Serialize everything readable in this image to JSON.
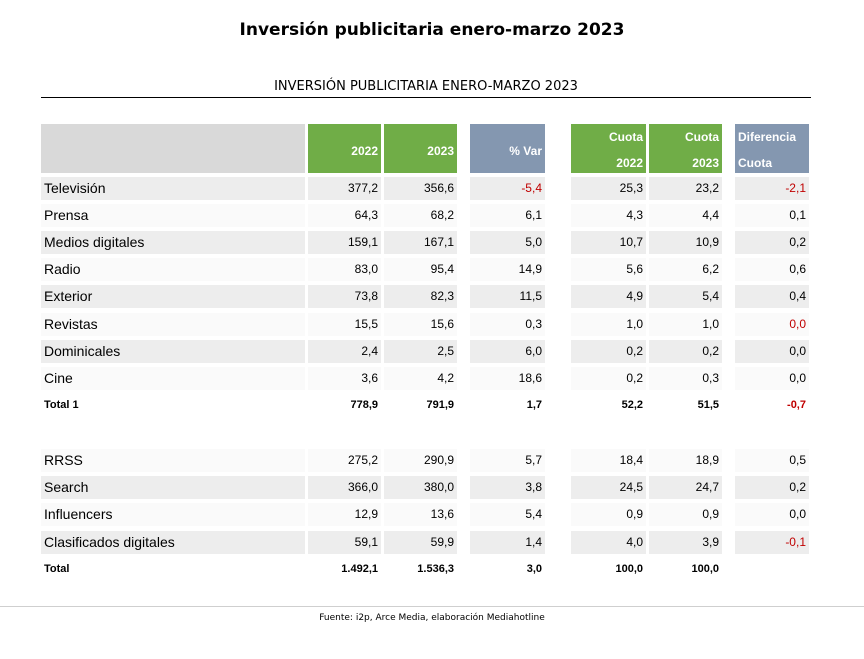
{
  "title": "Inversión publicitaria enero-marzo 2023",
  "subtitle": "INVERSIÓN PUBLICITARIA ENERO-MARZO 2023",
  "source": "Fuente: i2p, Arce Media, elaboración Mediahotline",
  "colors": {
    "header_green": "#70ad47",
    "header_blue": "#8497b0",
    "header_gray": "#d9d9d9",
    "negative": "#c00000"
  },
  "chart_data": {
    "type": "table",
    "title": "INVERSIÓN PUBLICITARIA ENERO-MARZO 2023",
    "headers": {
      "y2022": "2022",
      "y2023": "2023",
      "var": "% Var",
      "cuota2022": [
        "Cuota",
        "2022"
      ],
      "cuota2023": [
        "Cuota",
        "2023"
      ],
      "diff": [
        "Diferencia",
        "Cuota"
      ]
    },
    "rows": [
      {
        "label": "Televisión",
        "y2022": "377,2",
        "y2023": "356,6",
        "var": "-5,4",
        "c2022": "25,3",
        "c2023": "23,2",
        "diff": "-2,1",
        "neg_var": true,
        "neg_diff": true
      },
      {
        "label": "Prensa",
        "y2022": "64,3",
        "y2023": "68,2",
        "var": "6,1",
        "c2022": "4,3",
        "c2023": "4,4",
        "diff": "0,1"
      },
      {
        "label": "Medios digitales",
        "y2022": "159,1",
        "y2023": "167,1",
        "var": "5,0",
        "c2022": "10,7",
        "c2023": "10,9",
        "diff": "0,2"
      },
      {
        "label": "Radio",
        "y2022": "83,0",
        "y2023": "95,4",
        "var": "14,9",
        "c2022": "5,6",
        "c2023": "6,2",
        "diff": "0,6"
      },
      {
        "label": "Exterior",
        "y2022": "73,8",
        "y2023": "82,3",
        "var": "11,5",
        "c2022": "4,9",
        "c2023": "5,4",
        "diff": "0,4"
      },
      {
        "label": "Revistas",
        "y2022": "15,5",
        "y2023": "15,6",
        "var": "0,3",
        "c2022": "1,0",
        "c2023": "1,0",
        "diff": "0,0",
        "neg_diff": true
      },
      {
        "label": "Dominicales",
        "y2022": "2,4",
        "y2023": "2,5",
        "var": "6,0",
        "c2022": "0,2",
        "c2023": "0,2",
        "diff": "0,0"
      },
      {
        "label": "Cine",
        "y2022": "3,6",
        "y2023": "4,2",
        "var": "18,6",
        "c2022": "0,2",
        "c2023": "0,3",
        "diff": "0,0"
      },
      {
        "label": "Total 1",
        "y2022": "778,9",
        "y2023": "791,9",
        "var": "1,7",
        "c2022": "52,2",
        "c2023": "51,5",
        "diff": "-0,7",
        "total": true,
        "neg_diff": true
      },
      {
        "label": "RRSS",
        "y2022": "275,2",
        "y2023": "290,9",
        "var": "5,7",
        "c2022": "18,4",
        "c2023": "18,9",
        "diff": "0,5"
      },
      {
        "label": "Search",
        "y2022": "366,0",
        "y2023": "380,0",
        "var": "3,8",
        "c2022": "24,5",
        "c2023": "24,7",
        "diff": "0,2"
      },
      {
        "label": "Influencers",
        "y2022": "12,9",
        "y2023": "13,6",
        "var": "5,4",
        "c2022": "0,9",
        "c2023": "0,9",
        "diff": "0,0"
      },
      {
        "label": "Clasificados digitales",
        "y2022": "59,1",
        "y2023": "59,9",
        "var": "1,4",
        "c2022": "4,0",
        "c2023": "3,9",
        "diff": "-0,1",
        "neg_diff": true
      },
      {
        "label": "Total",
        "y2022": "1.492,1",
        "y2023": "1.536,3",
        "var": "3,0",
        "c2022": "100,0",
        "c2023": "100,0",
        "diff": "",
        "total": true
      }
    ]
  }
}
